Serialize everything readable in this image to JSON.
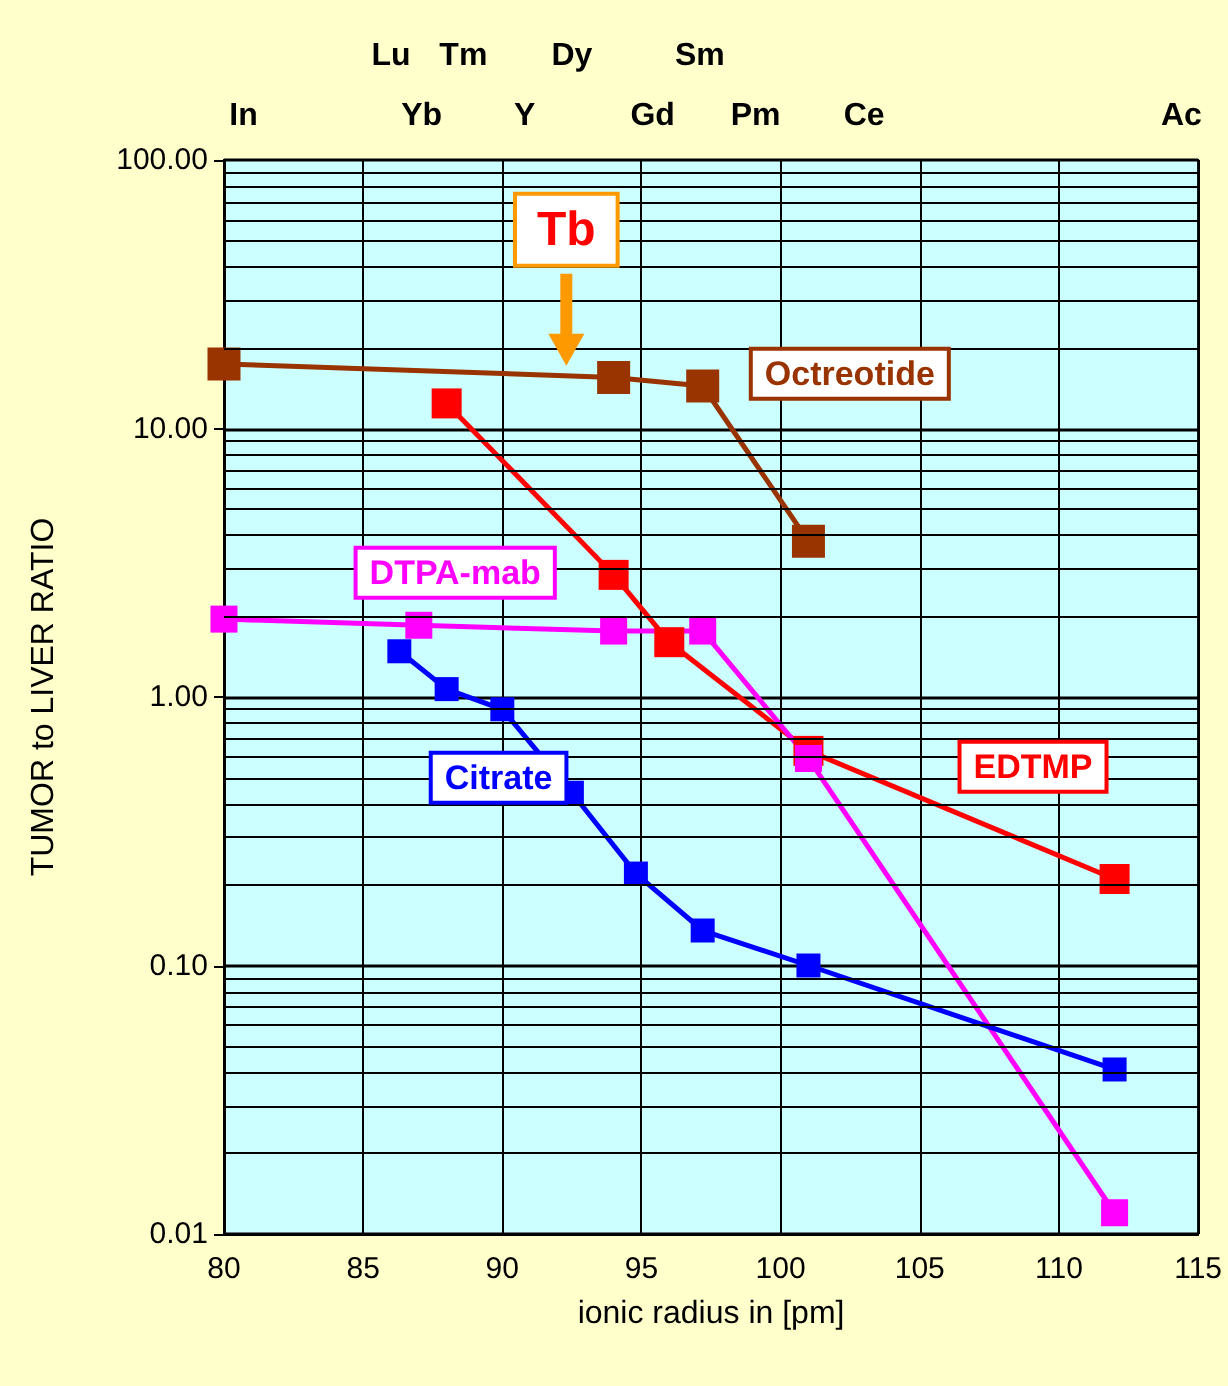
{
  "chart_data": {
    "type": "line",
    "xlabel": "ionic radius in [pm]",
    "ylabel": "TUMOR to LIVER RATIO",
    "series": [
      {
        "name": "Octreotide",
        "color": "#993300",
        "x": [
          80,
          94,
          97.2,
          101
        ],
        "values": [
          17.4,
          15.5,
          14.4,
          3.8
        ]
      },
      {
        "name": "EDTMP",
        "color": "#ff0000",
        "x": [
          88,
          94,
          96,
          101,
          112
        ],
        "values": [
          12.4,
          2.85,
          1.6,
          0.63,
          0.21
        ]
      },
      {
        "name": "DTPA-mab",
        "color": "#ff00ff",
        "x": [
          80,
          87,
          94,
          97.2,
          101,
          112
        ],
        "values": [
          1.95,
          1.85,
          1.76,
          1.76,
          0.59,
          0.012
        ]
      },
      {
        "name": "Citrate",
        "color": "#0000ff",
        "x": [
          86.3,
          88,
          90,
          92.5,
          94.8,
          97.2,
          101,
          112
        ],
        "values": [
          1.48,
          1.07,
          0.9,
          0.44,
          0.22,
          0.135,
          0.1,
          0.041
        ]
      }
    ],
    "xlim": [
      80,
      115
    ],
    "xticks": [
      80,
      85,
      90,
      95,
      100,
      105,
      110,
      115
    ],
    "ylim": [
      0.01,
      100
    ],
    "yticks": [
      {
        "value": 0.01,
        "label": "0.01"
      },
      {
        "value": 0.1,
        "label": "0.10"
      },
      {
        "value": 1,
        "label": "1.00"
      },
      {
        "value": 10,
        "label": "10.00"
      },
      {
        "value": 100,
        "label": "100.00"
      }
    ],
    "annotations": [
      "In",
      "Lu",
      "Yb",
      "Tm",
      "Y",
      "Dy",
      "Gd",
      "Sm",
      "Pm",
      "Ce",
      "Ac",
      {
        "text": "Tb",
        "x": 92.3,
        "y": 16
      }
    ],
    "log": "y",
    "grid": true,
    "marker": "square",
    "line_style": "solid",
    "legend": false
  }
}
